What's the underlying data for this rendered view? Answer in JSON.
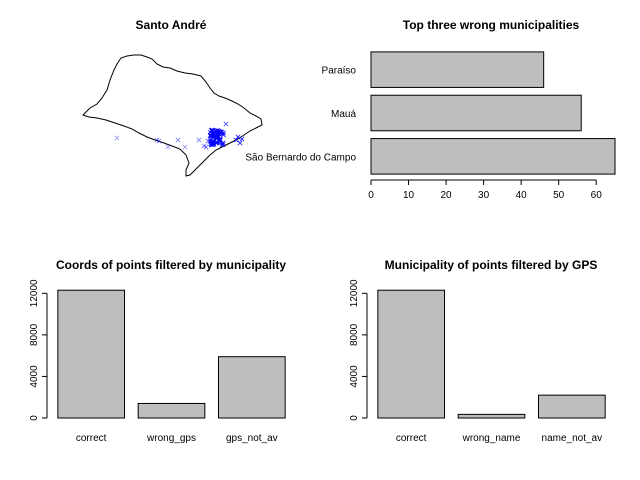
{
  "chart_data": [
    {
      "type": "map",
      "title": "Santo André",
      "colors": {
        "outline": "#000000",
        "points": "#0000ff"
      },
      "points_note": ""
    },
    {
      "type": "bar",
      "orientation": "horizontal",
      "title": "Top three wrong municipalities",
      "categories": [
        "São Bernardo do Campo",
        "Mauá",
        "Paraíso"
      ],
      "values": [
        65,
        56,
        46
      ],
      "xlim": [
        0,
        65
      ],
      "xticks": [
        "0",
        "10",
        "20",
        "30",
        "40",
        "50",
        "60"
      ],
      "bar_color": "#bebebe"
    },
    {
      "type": "bar",
      "title": "Coords of points filtered by municipality",
      "categories": [
        "correct",
        "wrong_gps",
        "gps_not_av"
      ],
      "values": [
        12300,
        1400,
        5900
      ],
      "ylim": [
        0,
        12800
      ],
      "yticks": [
        "0",
        "4000",
        "8000",
        "12000"
      ],
      "bar_color": "#bebebe"
    },
    {
      "type": "bar",
      "title": "Municipality of points filtered by GPS",
      "categories": [
        "correct",
        "wrong_name",
        "name_not_av"
      ],
      "values": [
        12300,
        350,
        2200
      ],
      "ylim": [
        0,
        12800
      ],
      "yticks": [
        "0",
        "4000",
        "8000",
        "12000"
      ],
      "bar_color": "#bebebe"
    }
  ]
}
